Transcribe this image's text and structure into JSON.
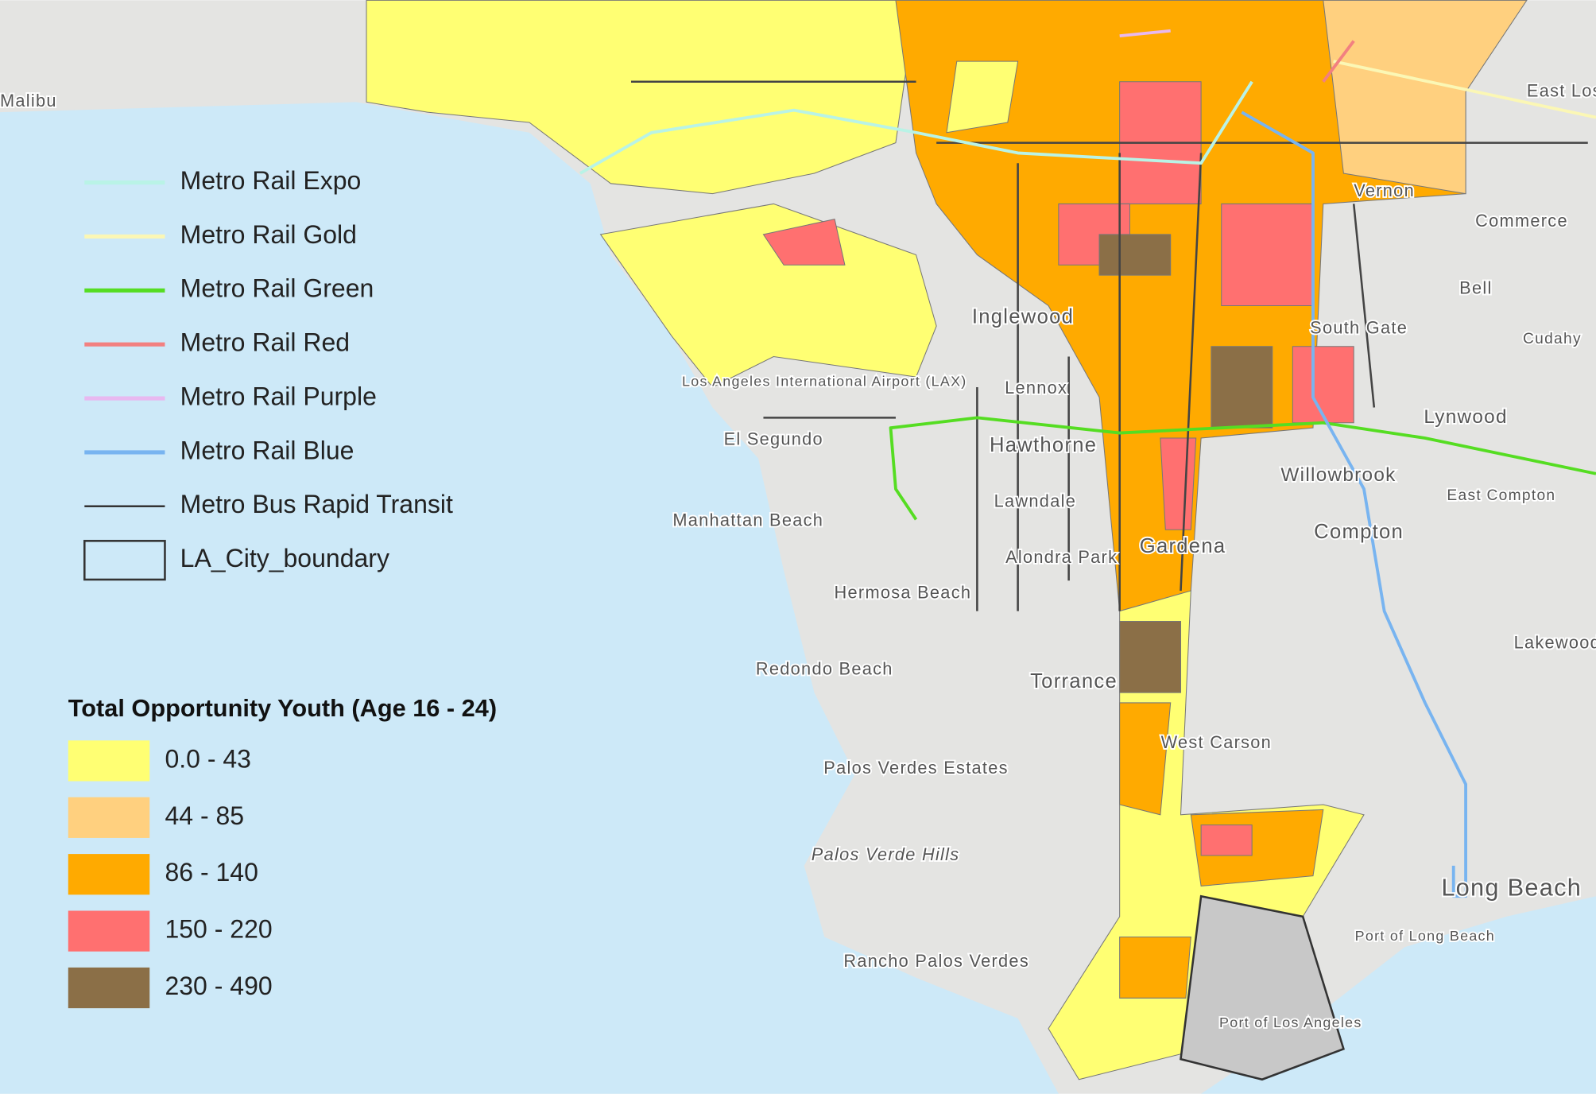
{
  "legend": {
    "items": [
      {
        "label": "Metro Rail Expo",
        "color": "#b9f3e6"
      },
      {
        "label": "Metro Rail Gold",
        "color": "#fbf7b5"
      },
      {
        "label": "Metro Rail Green",
        "color": "#55dd22"
      },
      {
        "label": "Metro Rail Red",
        "color": "#f28080"
      },
      {
        "label": "Metro Rail Purple",
        "color": "#e8b8f0"
      },
      {
        "label": "Metro Rail Blue",
        "color": "#78b4f0"
      },
      {
        "label": "Metro Bus Rapid Transit",
        "color": "#333333"
      },
      {
        "label": "LA_City_boundary",
        "color": "#333333",
        "symbol": "box"
      }
    ]
  },
  "choropleth": {
    "title": "Total Opportunity Youth (Age 16 - 24)",
    "classes": [
      {
        "label": "0.0 - 43",
        "color": "#ffff73"
      },
      {
        "label": "44 - 85",
        "color": "#ffd07f"
      },
      {
        "label": "86 - 140",
        "color": "#ffaa00"
      },
      {
        "label": "150 - 220",
        "color": "#ff7070"
      },
      {
        "label": "230 - 490",
        "color": "#8b6f47"
      }
    ]
  },
  "places": [
    "Malibu",
    "Inglewood",
    "Lennox",
    "Hawthorne",
    "El Segundo",
    "Manhattan Beach",
    "Hermosa Beach",
    "Redondo Beach",
    "Torrance",
    "Gardena",
    "Lawndale",
    "Alondra Park",
    "West Carson",
    "Palos Verdes Estates",
    "Rancho Palos Verdes",
    "Compton",
    "Willowbrook",
    "Lynwood",
    "South Gate",
    "Bell",
    "Vernon",
    "Commerce",
    "East Los Angeles",
    "Long Beach",
    "Port of Long Beach",
    "Port of Los Angeles",
    "Los Angeles International Airport (LAX)",
    "Palos Verde Hills",
    "Lakewood",
    "East Compton",
    "Cudahy"
  ]
}
